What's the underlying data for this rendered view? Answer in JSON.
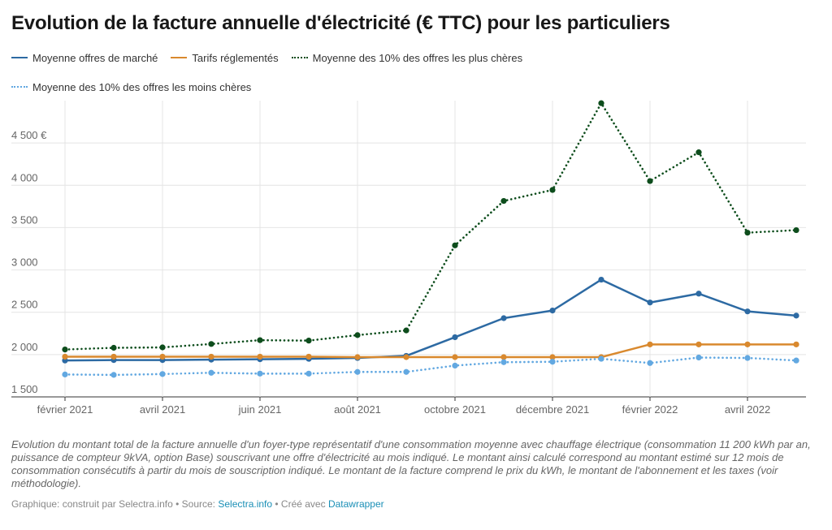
{
  "title": "Evolution de la facture annuelle d'électricité (€ TTC) pour les particuliers",
  "caption": "Evolution du montant total de la facture annuelle d'un foyer-type représentatif d'une consommation moyenne avec chauffage électrique (consommation 11 200 kWh par an, puissance de compteur 9kVA, option Base) souscrivant une offre d'électricité au mois indiqué. Le montant ainsi calculé correspond au montant estimé sur 12 mois de consommation consécutifs à partir du mois de souscription indiqué. Le montant de la facture comprend le prix du kWh, le montant de l'abonnement et les taxes (voir méthodologie).",
  "credits": {
    "prefix": "Graphique: construit par Selectra.info • Source: ",
    "source_link": "Selectra.info",
    "middle": " • Créé avec ",
    "tool_link": "Datawrapper"
  },
  "chart_data": {
    "type": "line",
    "title": "Evolution de la facture annuelle d'électricité (€ TTC) pour les particuliers",
    "xlabel": "",
    "ylabel": "",
    "ylim": [
      1500,
      5000
    ],
    "grid": true,
    "legend_position": "top",
    "x": [
      "2021-02",
      "2021-03",
      "2021-04",
      "2021-05",
      "2021-06",
      "2021-07",
      "2021-08",
      "2021-09",
      "2021-10",
      "2021-11",
      "2021-12",
      "2022-01",
      "2022-02",
      "2022-03",
      "2022-04",
      "2022-05"
    ],
    "x_ticks": [
      {
        "index": 0,
        "label": "février 2021"
      },
      {
        "index": 2,
        "label": "avril 2021"
      },
      {
        "index": 4,
        "label": "juin 2021"
      },
      {
        "index": 6,
        "label": "août 2021"
      },
      {
        "index": 8,
        "label": "octobre 2021"
      },
      {
        "index": 10,
        "label": "décembre 2021"
      },
      {
        "index": 12,
        "label": "février 2022"
      },
      {
        "index": 14,
        "label": "avril 2022"
      }
    ],
    "y_ticks": [
      {
        "value": 1500,
        "label": "1 500"
      },
      {
        "value": 2000,
        "label": "2 000"
      },
      {
        "value": 2500,
        "label": "2 500"
      },
      {
        "value": 3000,
        "label": "3 000"
      },
      {
        "value": 3500,
        "label": "3 500"
      },
      {
        "value": 4000,
        "label": "4 000"
      },
      {
        "value": 4500,
        "label": "4 500 €"
      }
    ],
    "series": [
      {
        "name": "Moyenne des 10% des offres les plus chères",
        "color": "#0d4d1c",
        "style": "dotted",
        "values": [
          2060,
          2080,
          2085,
          2125,
          2170,
          2165,
          2230,
          2285,
          3290,
          3815,
          3945,
          4970,
          4050,
          4390,
          3440,
          3470
        ]
      },
      {
        "name": "Moyenne offres de marché",
        "color": "#2d6aa3",
        "style": "solid",
        "values": [
          1930,
          1935,
          1935,
          1940,
          1945,
          1950,
          1960,
          1985,
          2205,
          2430,
          2520,
          2885,
          2615,
          2720,
          2510,
          2460
        ]
      },
      {
        "name": "Tarifs réglementés",
        "color": "#d9892e",
        "style": "solid",
        "values": [
          1975,
          1975,
          1975,
          1975,
          1975,
          1975,
          1970,
          1970,
          1970,
          1970,
          1970,
          1970,
          2120,
          2120,
          2120,
          2120
        ]
      },
      {
        "name": "Moyenne des 10% des offres les moins chères",
        "color": "#62a8e1",
        "style": "dotted",
        "values": [
          1765,
          1760,
          1770,
          1785,
          1775,
          1775,
          1795,
          1795,
          1870,
          1910,
          1915,
          1950,
          1900,
          1965,
          1960,
          1930
        ]
      }
    ],
    "legend_order": [
      "Moyenne offres de marché",
      "Tarifs réglementés",
      "Moyenne des 10% des offres les plus chères",
      "Moyenne des 10% des offres les moins chères"
    ]
  }
}
